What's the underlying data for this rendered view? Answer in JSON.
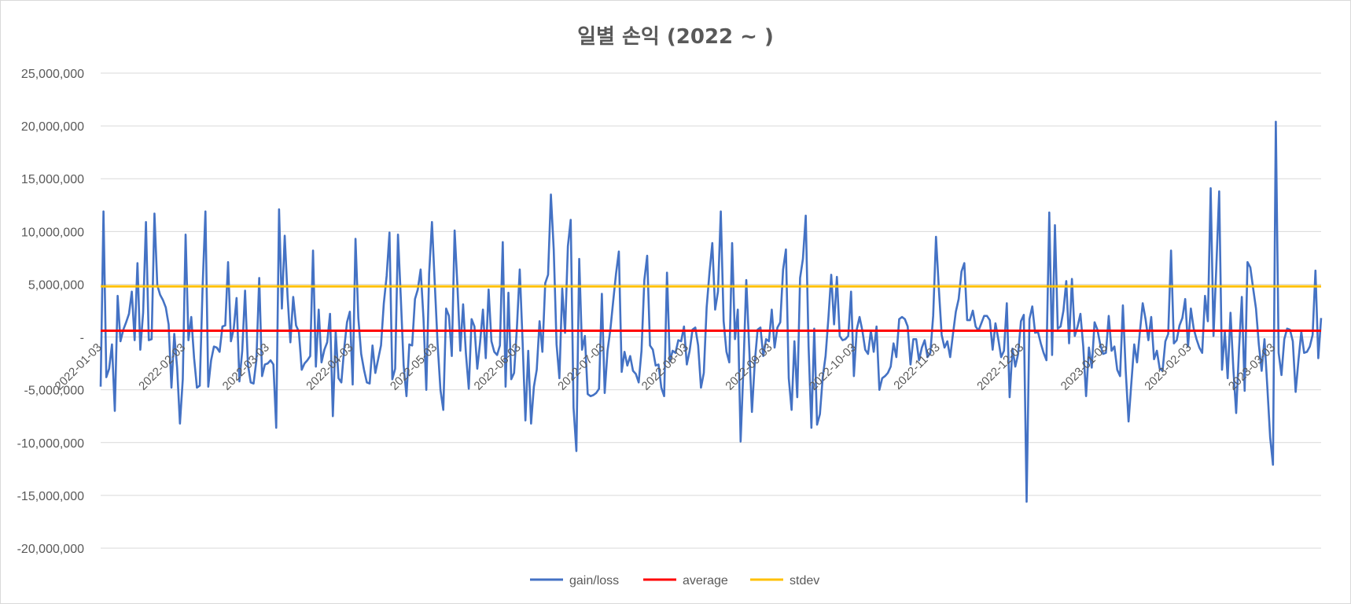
{
  "chart_data": {
    "type": "line",
    "title": "일별 손익 (2022 ~ )",
    "xlabel": "",
    "ylabel": "",
    "ylim": [
      -20000000,
      25000000
    ],
    "y_ticks": [
      25000000,
      20000000,
      15000000,
      10000000,
      5000000,
      0,
      -5000000,
      -10000000,
      -15000000,
      -20000000
    ],
    "y_tick_labels": [
      "25,000,000",
      "20,000,000",
      "15,000,000",
      "10,000,000",
      "5,000,000",
      "-",
      "-5,000,000",
      "-10,000,000",
      "-15,000,000",
      "-20,000,000"
    ],
    "x_tick_labels": [
      "2022-01-03",
      "2022-02-03",
      "2022-03-03",
      "2022-04-03",
      "2022-05-03",
      "2022-06-03",
      "2022-07-03",
      "2022-08-03",
      "2022-09-03",
      "2022-10-03",
      "2022-11-03",
      "2022-12-03",
      "2023-01-03",
      "2023-02-03",
      "2023-03-03"
    ],
    "grid": true,
    "legend_position": "bottom",
    "series": [
      {
        "name": "gain/loss",
        "color": "#4472c4",
        "values": [
          -4700000,
          11900000,
          -3800000,
          -3000000,
          -700000,
          -7000000,
          3900000,
          -400000,
          700000,
          1400000,
          2200000,
          4300000,
          -300000,
          7000000,
          -1200000,
          2300000,
          10900000,
          -300000,
          -200000,
          11700000,
          4900000,
          4000000,
          3500000,
          2800000,
          1200000,
          -4800000,
          300000,
          -2900000,
          -8200000,
          -4000000,
          9700000,
          -300000,
          1900000,
          -2000000,
          -4800000,
          -4600000,
          4700000,
          11900000,
          -4700000,
          -2200000,
          -900000,
          -1000000,
          -1400000,
          1000000,
          1100000,
          7100000,
          -400000,
          800000,
          3700000,
          -4200000,
          -1300000,
          4400000,
          -2600000,
          -4300000,
          -4400000,
          -2200000,
          5600000,
          -3700000,
          -2600000,
          -2500000,
          -2200000,
          -2600000,
          -8600000,
          12100000,
          2700000,
          9600000,
          3900000,
          -500000,
          3800000,
          1100000,
          500000,
          -3100000,
          -2500000,
          -2200000,
          -1800000,
          8200000,
          -2800000,
          2600000,
          -2400000,
          -1200000,
          -500000,
          2200000,
          -7500000,
          500000,
          -3900000,
          -4300000,
          -1100000,
          1400000,
          2400000,
          -4500000,
          9300000,
          1800000,
          -1600000,
          -3100000,
          -4300000,
          -4400000,
          -800000,
          -3400000,
          -2100000,
          -800000,
          3200000,
          5800000,
          9900000,
          -4000000,
          -3000000,
          9700000,
          3700000,
          -2700000,
          -5600000,
          -700000,
          -800000,
          3600000,
          4500000,
          6400000,
          1800000,
          -5000000,
          6000000,
          10900000,
          5000000,
          -700000,
          -5000000,
          -6900000,
          2700000,
          2000000,
          -1800000,
          10100000,
          4800000,
          -1300000,
          3100000,
          -1600000,
          -4900000,
          1700000,
          1000000,
          -3000000,
          -500000,
          2600000,
          -2000000,
          4500000,
          -400000,
          -1400000,
          -1700000,
          -800000,
          9000000,
          -4700000,
          4200000,
          -4000000,
          -3400000,
          900000,
          6400000,
          -400000,
          -7900000,
          -1300000,
          -8200000,
          -4700000,
          -3100000,
          1500000,
          -1400000,
          5100000,
          5900000,
          13500000,
          8300000,
          -700000,
          -3900000,
          4600000,
          400000,
          8600000,
          11100000,
          -6700000,
          -10800000,
          7400000,
          -1200000,
          100000,
          -5400000,
          -5600000,
          -5500000,
          -5300000,
          -4900000,
          4100000,
          -5300000,
          -1300000,
          700000,
          3400000,
          6000000,
          8100000,
          -3300000,
          -1400000,
          -2700000,
          -1800000,
          -3200000,
          -3500000,
          -4300000,
          -1300000,
          5400000,
          7700000,
          -800000,
          -1200000,
          -2700000,
          -2600000,
          -4800000,
          -5600000,
          6100000,
          -2300000,
          -1300000,
          -1500000,
          -300000,
          -400000,
          1000000,
          -2600000,
          -1300000,
          700000,
          900000,
          -800000,
          -4800000,
          -3400000,
          2800000,
          6100000,
          8900000,
          2600000,
          4300000,
          11900000,
          1500000,
          -1400000,
          -2400000,
          8900000,
          -200000,
          2600000,
          -9900000,
          -2900000,
          5400000,
          -800000,
          -7100000,
          -2400000,
          700000,
          900000,
          -1800000,
          -200000,
          -400000,
          2600000,
          -1000000,
          900000,
          1400000,
          6400000,
          8300000,
          -3900000,
          -6900000,
          -400000,
          -5700000,
          5600000,
          7400000,
          11500000,
          -900000,
          -8600000,
          800000,
          -8300000,
          -7300000,
          -3800000,
          -1800000,
          1800000,
          5900000,
          1200000,
          5700000,
          100000,
          -300000,
          -200000,
          100000,
          4300000,
          -3700000,
          700000,
          1900000,
          600000,
          -1200000,
          -1600000,
          600000,
          -1400000,
          1000000,
          -5000000,
          -3900000,
          -3700000,
          -3400000,
          -2800000,
          -600000,
          -1900000,
          1700000,
          1900000,
          1700000,
          1000000,
          -2600000,
          -200000,
          -200000,
          -2200000,
          -1000000,
          -300000,
          -1900000,
          -1500000,
          2000000,
          9500000,
          4600000,
          200000,
          -1000000,
          -400000,
          -1900000,
          300000,
          2400000,
          3600000,
          6200000,
          7000000,
          1600000,
          1600000,
          2500000,
          1000000,
          600000,
          1300000,
          2000000,
          2000000,
          1600000,
          -1200000,
          1300000,
          -200000,
          -1900000,
          -1300000,
          3200000,
          -5700000,
          -1100000,
          -2800000,
          -1600000,
          1500000,
          2100000,
          -15600000,
          1700000,
          2900000,
          400000,
          500000,
          -600000,
          -1500000,
          -2200000,
          11800000,
          -1700000,
          10600000,
          800000,
          1000000,
          2500000,
          5300000,
          -600000,
          5500000,
          100000,
          1000000,
          2200000,
          -900000,
          -5600000,
          -1000000,
          -2900000,
          1400000,
          700000,
          -700000,
          -1600000,
          -1500000,
          2000000,
          -1300000,
          -900000,
          -3100000,
          -3700000,
          3000000,
          -3200000,
          -8000000,
          -4300000,
          -700000,
          -2400000,
          500000,
          3200000,
          1700000,
          -300000,
          1900000,
          -2100000,
          -1300000,
          -3000000,
          -3200000,
          -400000,
          300000,
          8200000,
          -600000,
          -300000,
          1100000,
          1800000,
          3600000,
          -900000,
          2700000,
          800000,
          -200000,
          -1000000,
          -1500000,
          3900000,
          1500000,
          14100000,
          100000,
          6700000,
          13800000,
          -3100000,
          500000,
          -3900000,
          2300000,
          -3000000,
          -7200000,
          -1200000,
          3800000,
          -5100000,
          7100000,
          6600000,
          4600000,
          2700000,
          -700000,
          -3200000,
          -200000,
          -4700000,
          -9500000,
          -12100000,
          20400000,
          -1500000,
          -3600000,
          -200000,
          800000,
          700000,
          -400000,
          -5200000,
          -2200000,
          500000,
          -1500000,
          -1400000,
          -900000,
          200000,
          6300000,
          -2000000,
          1800000
        ]
      },
      {
        "name": "average",
        "color": "#ff0000",
        "values": [
          600000,
          600000
        ]
      },
      {
        "name": "stdev",
        "color": "#ffc000",
        "values": [
          4800000,
          4800000
        ]
      }
    ]
  }
}
